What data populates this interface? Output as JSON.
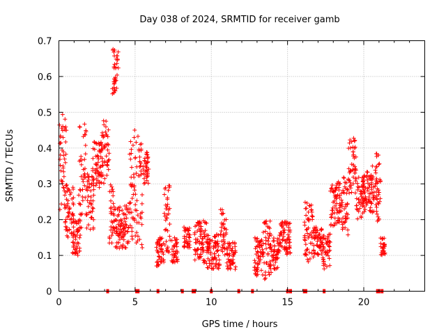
{
  "chart_data": {
    "type": "scatter",
    "title": "Day 038 of 2024, SRMTID for receiver gamb",
    "xlabel": "GPS time / hours",
    "ylabel": "SRMTID / TECUs",
    "xlim": [
      0,
      24
    ],
    "ylim": [
      0,
      0.7
    ],
    "xticks": [
      0,
      5,
      10,
      15,
      20
    ],
    "yticks": [
      0,
      0.1,
      0.2,
      0.3,
      0.4,
      0.5,
      0.6,
      0.7
    ],
    "grid": true,
    "marker": "+",
    "series_color": "#ff0000",
    "clusters": [
      {
        "x_start": 0.0,
        "x_end": 0.5,
        "y_min": 0.22,
        "y_max": 0.5
      },
      {
        "x_start": 0.4,
        "x_end": 1.0,
        "y_min": 0.15,
        "y_max": 0.3
      },
      {
        "x_start": 0.9,
        "x_end": 1.4,
        "y_min": 0.1,
        "y_max": 0.2
      },
      {
        "x_start": 1.3,
        "x_end": 1.8,
        "y_min": 0.17,
        "y_max": 0.47
      },
      {
        "x_start": 1.8,
        "x_end": 2.3,
        "y_min": 0.17,
        "y_max": 0.33
      },
      {
        "x_start": 2.2,
        "x_end": 2.8,
        "y_min": 0.28,
        "y_max": 0.42
      },
      {
        "x_start": 2.8,
        "x_end": 3.3,
        "y_min": 0.3,
        "y_max": 0.48
      },
      {
        "x_start": 3.3,
        "x_end": 3.6,
        "y_min": 0.13,
        "y_max": 0.33
      },
      {
        "x_start": 3.5,
        "x_end": 3.9,
        "y_min": 0.55,
        "y_max": 0.68
      },
      {
        "x_start": 3.6,
        "x_end": 4.6,
        "y_min": 0.12,
        "y_max": 0.24
      },
      {
        "x_start": 4.6,
        "x_end": 5.0,
        "y_min": 0.14,
        "y_max": 0.47
      },
      {
        "x_start": 5.0,
        "x_end": 5.5,
        "y_min": 0.12,
        "y_max": 0.44
      },
      {
        "x_start": 5.5,
        "x_end": 5.9,
        "y_min": 0.3,
        "y_max": 0.39
      },
      {
        "x_start": 6.4,
        "x_end": 6.9,
        "y_min": 0.07,
        "y_max": 0.15
      },
      {
        "x_start": 6.9,
        "x_end": 7.3,
        "y_min": 0.1,
        "y_max": 0.3
      },
      {
        "x_start": 7.4,
        "x_end": 7.8,
        "y_min": 0.08,
        "y_max": 0.15
      },
      {
        "x_start": 8.2,
        "x_end": 8.6,
        "y_min": 0.12,
        "y_max": 0.18
      },
      {
        "x_start": 8.9,
        "x_end": 9.7,
        "y_min": 0.07,
        "y_max": 0.2
      },
      {
        "x_start": 9.7,
        "x_end": 10.6,
        "y_min": 0.06,
        "y_max": 0.16
      },
      {
        "x_start": 10.6,
        "x_end": 11.0,
        "y_min": 0.1,
        "y_max": 0.23
      },
      {
        "x_start": 11.0,
        "x_end": 11.6,
        "y_min": 0.06,
        "y_max": 0.14
      },
      {
        "x_start": 12.8,
        "x_end": 13.4,
        "y_min": 0.04,
        "y_max": 0.15
      },
      {
        "x_start": 13.4,
        "x_end": 14.0,
        "y_min": 0.03,
        "y_max": 0.2
      },
      {
        "x_start": 14.0,
        "x_end": 14.4,
        "y_min": 0.06,
        "y_max": 0.15
      },
      {
        "x_start": 14.4,
        "x_end": 15.2,
        "y_min": 0.1,
        "y_max": 0.2
      },
      {
        "x_start": 16.1,
        "x_end": 16.7,
        "y_min": 0.07,
        "y_max": 0.25
      },
      {
        "x_start": 16.7,
        "x_end": 17.3,
        "y_min": 0.1,
        "y_max": 0.18
      },
      {
        "x_start": 17.3,
        "x_end": 17.8,
        "y_min": 0.06,
        "y_max": 0.16
      },
      {
        "x_start": 17.8,
        "x_end": 18.6,
        "y_min": 0.18,
        "y_max": 0.32
      },
      {
        "x_start": 18.6,
        "x_end": 19.0,
        "y_min": 0.15,
        "y_max": 0.32
      },
      {
        "x_start": 19.0,
        "x_end": 19.5,
        "y_min": 0.27,
        "y_max": 0.43
      },
      {
        "x_start": 19.5,
        "x_end": 20.0,
        "y_min": 0.2,
        "y_max": 0.32
      },
      {
        "x_start": 20.0,
        "x_end": 20.9,
        "y_min": 0.22,
        "y_max": 0.35
      },
      {
        "x_start": 20.8,
        "x_end": 21.1,
        "y_min": 0.18,
        "y_max": 0.39
      },
      {
        "x_start": 21.1,
        "x_end": 21.4,
        "y_min": 0.1,
        "y_max": 0.15
      }
    ],
    "zero_markers_x": [
      3.2,
      5.1,
      5.2,
      6.5,
      8.1,
      8.8,
      8.9,
      10.0,
      11.8,
      12.7,
      15.0,
      15.2,
      16.1,
      16.2,
      17.4,
      20.9,
      21.0,
      21.2
    ]
  }
}
